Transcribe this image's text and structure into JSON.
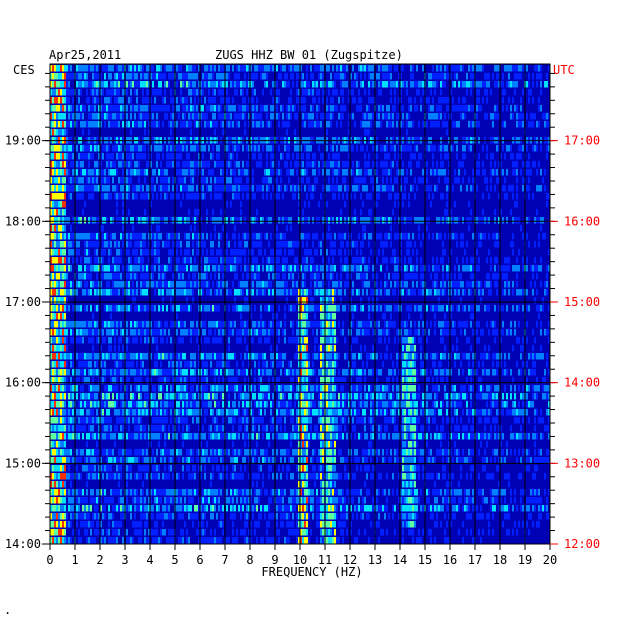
{
  "header": {
    "date": "Apr25,2011",
    "station": "ZUGS HHZ BW 01 (Zugspitze)",
    "left_timezone": "CES",
    "right_timezone": "UTC"
  },
  "colors": {
    "background": "#0000b4",
    "utc_label": "#ff0000",
    "grid": "#000000",
    "ramp": [
      "#0000b4",
      "#0020ff",
      "#0080ff",
      "#00e0ff",
      "#60ffa0",
      "#ffff00",
      "#ff3000"
    ]
  },
  "chart_data": {
    "type": "heatmap",
    "title": "ZUGS HHZ BW 01 (Zugspitze)",
    "xlabel": "FREQUENCY (HZ)",
    "x_ticks": [
      "0",
      "1",
      "2",
      "3",
      "4",
      "5",
      "6",
      "7",
      "8",
      "9",
      "10",
      "11",
      "12",
      "13",
      "14",
      "15",
      "16",
      "17",
      "18",
      "19",
      "20"
    ],
    "xlim": [
      0,
      20
    ],
    "y_ticks_left": [
      "14:00",
      "15:00",
      "16:00",
      "17:00",
      "18:00",
      "19:00"
    ],
    "y_ticks_right": [
      "12:00",
      "13:00",
      "14:00",
      "15:00",
      "16:00",
      "17:00"
    ],
    "y_hours_range": [
      14.0,
      19.95
    ],
    "rows": 60,
    "grid": true,
    "features": [
      {
        "freq_hz": [
          0.0,
          0.6
        ],
        "hours": [
          14.0,
          19.95
        ],
        "level": 0.75,
        "note": ""
      },
      {
        "freq_hz": [
          9.9,
          10.3
        ],
        "hours": [
          14.0,
          17.2
        ],
        "level": 0.7,
        "note": ""
      },
      {
        "freq_hz": [
          10.8,
          11.4
        ],
        "hours": [
          14.0,
          17.2
        ],
        "level": 0.6,
        "note": ""
      },
      {
        "freq_hz": [
          14.1,
          14.6
        ],
        "hours": [
          14.2,
          16.6
        ],
        "level": 0.55,
        "note": ""
      }
    ]
  }
}
